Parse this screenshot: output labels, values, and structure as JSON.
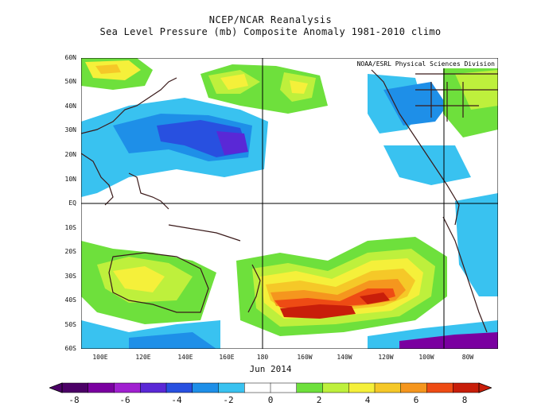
{
  "header": {
    "title": "NCEP/NCAR Reanalysis",
    "subtitle": "Sea Level Pressure (mb) Composite Anomaly 1981-2010 climo"
  },
  "map": {
    "credit": "NOAA/ESRL Physical Sciences Division",
    "lat_labels": [
      "60N",
      "50N",
      "40N",
      "30N",
      "20N",
      "10N",
      "EQ",
      "10S",
      "20S",
      "30S",
      "40S",
      "50S",
      "60S"
    ],
    "lon_labels": [
      "100E",
      "120E",
      "140E",
      "160E",
      "180",
      "160W",
      "140W",
      "120W",
      "100W",
      "80W"
    ],
    "date": "Jun 2014",
    "variable": "Sea Level Pressure anomaly (mb)"
  },
  "colorbar": {
    "labels": [
      "-8",
      "-6",
      "-4",
      "-2",
      "0",
      "2",
      "4",
      "6",
      "8"
    ],
    "colors": [
      "#4b0066",
      "#7a00a0",
      "#a020d0",
      "#5a28d6",
      "#2850e0",
      "#1e8fe8",
      "#39c2f0",
      "#ffffff",
      "#ffffff",
      "#6ee03c",
      "#bef03c",
      "#f5f03a",
      "#f5c828",
      "#f5961e",
      "#ee4b14",
      "#c81e0a"
    ]
  },
  "colors": {
    "positive_max": "#b50c00",
    "negative_max": "#2c10c8"
  }
}
